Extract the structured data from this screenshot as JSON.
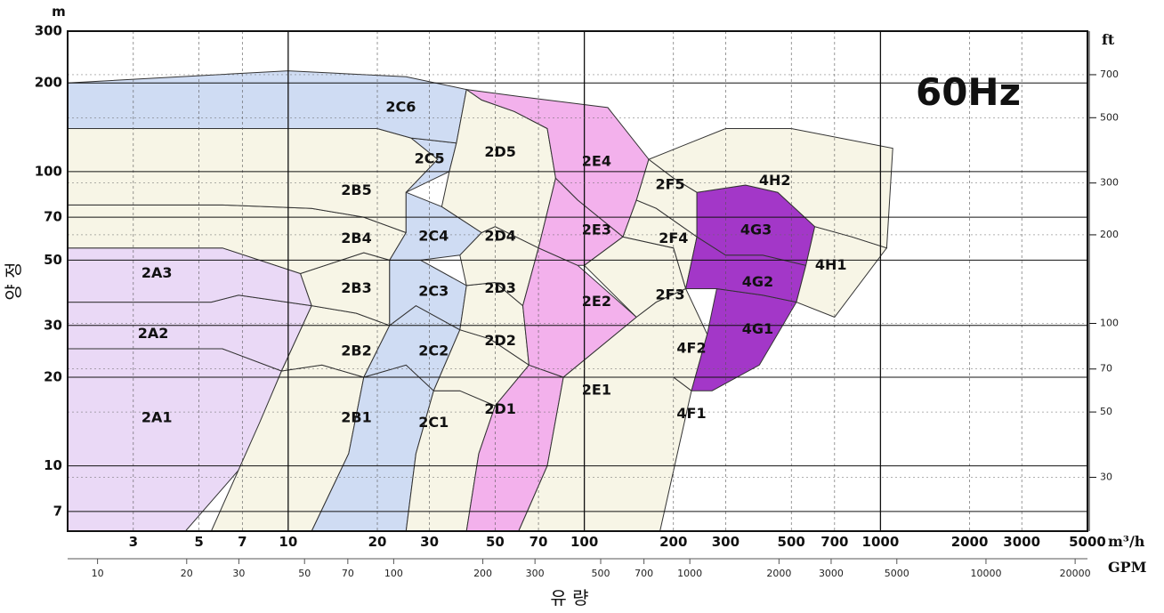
{
  "chart_data": {
    "type": "area",
    "title": "60Hz",
    "xlabel": "유 량",
    "ylabel": "양 정",
    "x_scale": "log",
    "y_scale": "log",
    "xlim": [
      1.8,
      5000
    ],
    "ylim": [
      6,
      300
    ],
    "x_unit": "m³/h",
    "x2_unit": "GPM",
    "y_unit": "m",
    "y2_unit": "ft",
    "x_ticks": [
      3,
      5,
      7,
      10,
      20,
      30,
      50,
      70,
      100,
      200,
      300,
      500,
      700,
      1000,
      2000,
      3000,
      5000
    ],
    "x2_ticks": [
      10,
      20,
      30,
      50,
      70,
      100,
      200,
      300,
      500,
      700,
      1000,
      2000,
      3000,
      5000,
      10000,
      20000
    ],
    "y_ticks": [
      7,
      10,
      20,
      30,
      50,
      70,
      100,
      200,
      300
    ],
    "y2_ticks": [
      30,
      50,
      70,
      100,
      200,
      300,
      500,
      700
    ],
    "grid": true,
    "frequency_label": "60Hz",
    "colors": {
      "A": "#ead9f6",
      "B": "#f7f5e6",
      "C": "#cfdcf3",
      "D": "#f7f5e6",
      "E": "#f3b1ec",
      "F": "#f7f5e6",
      "G": "#a337c8",
      "H": "#f7f5e6"
    },
    "zones": [
      {
        "name": "2A1",
        "color": "A",
        "label_at": [
          3.6,
          14.5
        ],
        "polygon": [
          [
            1.8,
            6
          ],
          [
            1.8,
            25
          ],
          [
            6,
            25
          ],
          [
            9.5,
            21
          ],
          [
            7,
            10
          ],
          [
            4.5,
            6
          ]
        ]
      },
      {
        "name": "2A2",
        "color": "A",
        "label_at": [
          3.5,
          28
        ],
        "polygon": [
          [
            1.8,
            25
          ],
          [
            1.8,
            36
          ],
          [
            5.5,
            36
          ],
          [
            6.8,
            38
          ],
          [
            12,
            35
          ],
          [
            9.5,
            21
          ],
          [
            6,
            25
          ]
        ]
      },
      {
        "name": "2A3",
        "color": "A",
        "label_at": [
          3.6,
          45
        ],
        "polygon": [
          [
            1.8,
            36
          ],
          [
            1.8,
            55
          ],
          [
            6,
            55
          ],
          [
            11,
            45
          ],
          [
            12,
            35
          ],
          [
            6.8,
            38
          ],
          [
            5.5,
            36
          ]
        ]
      },
      {
        "name": "2B1",
        "color": "B",
        "label_at": [
          17,
          14.5
        ],
        "polygon": [
          [
            5.5,
            6
          ],
          [
            8,
            14
          ],
          [
            9.5,
            21
          ],
          [
            13,
            22
          ],
          [
            18,
            20
          ],
          [
            16,
            11
          ],
          [
            12,
            6
          ]
        ]
      },
      {
        "name": "2B2",
        "color": "B",
        "label_at": [
          17,
          24.5
        ],
        "polygon": [
          [
            9.5,
            21
          ],
          [
            12,
            35
          ],
          [
            17,
            33
          ],
          [
            22,
            30
          ],
          [
            18,
            20
          ],
          [
            13,
            22
          ]
        ]
      },
      {
        "name": "2B3",
        "color": "B",
        "label_at": [
          17,
          40
        ],
        "polygon": [
          [
            11,
            45
          ],
          [
            12,
            35
          ],
          [
            17,
            33
          ],
          [
            22,
            30
          ],
          [
            22,
            50
          ],
          [
            18,
            53
          ]
        ]
      },
      {
        "name": "2B4",
        "color": "B",
        "label_at": [
          17,
          59
        ],
        "polygon": [
          [
            1.8,
            55
          ],
          [
            1.8,
            77
          ],
          [
            6,
            77
          ],
          [
            12,
            75
          ],
          [
            18,
            70
          ],
          [
            25,
            62
          ],
          [
            22,
            50
          ],
          [
            18,
            53
          ],
          [
            11,
            45
          ],
          [
            6,
            55
          ]
        ]
      },
      {
        "name": "2B5",
        "color": "B",
        "label_at": [
          17,
          86
        ],
        "polygon": [
          [
            1.8,
            77
          ],
          [
            1.8,
            140
          ],
          [
            20,
            140
          ],
          [
            26,
            130
          ],
          [
            32,
            110
          ],
          [
            25,
            85
          ],
          [
            25,
            62
          ],
          [
            18,
            70
          ],
          [
            12,
            75
          ],
          [
            6,
            77
          ]
        ]
      },
      {
        "name": "2C1",
        "color": "C",
        "label_at": [
          31,
          14
        ],
        "polygon": [
          [
            12,
            6
          ],
          [
            16,
            11
          ],
          [
            18,
            20
          ],
          [
            25,
            22
          ],
          [
            31,
            18
          ],
          [
            27,
            11
          ],
          [
            25,
            6
          ]
        ]
      },
      {
        "name": "2C2",
        "color": "C",
        "label_at": [
          31,
          24.5
        ],
        "polygon": [
          [
            18,
            20
          ],
          [
            22,
            30
          ],
          [
            27,
            35
          ],
          [
            38,
            29
          ],
          [
            31,
            18
          ],
          [
            25,
            22
          ]
        ]
      },
      {
        "name": "2C3",
        "color": "C",
        "label_at": [
          31,
          39
        ],
        "polygon": [
          [
            22,
            30
          ],
          [
            22,
            50
          ],
          [
            28,
            50
          ],
          [
            40,
            41
          ],
          [
            38,
            29
          ],
          [
            27,
            35
          ]
        ]
      },
      {
        "name": "2C4",
        "color": "C",
        "label_at": [
          31,
          60
        ],
        "polygon": [
          [
            22,
            50
          ],
          [
            25,
            62
          ],
          [
            25,
            85
          ],
          [
            33,
            76
          ],
          [
            45,
            62
          ],
          [
            38,
            52
          ],
          [
            28,
            50
          ]
        ]
      },
      {
        "name": "2C5",
        "color": "C",
        "label_at": [
          30,
          110
        ],
        "polygon": [
          [
            32,
            110
          ],
          [
            26,
            130
          ],
          [
            30,
            128
          ],
          [
            37,
            125
          ],
          [
            35,
            100
          ],
          [
            25,
            85
          ]
        ]
      },
      {
        "name": "2C6",
        "color": "C",
        "label_at": [
          24,
          165
        ],
        "polygon": [
          [
            1.8,
            140
          ],
          [
            1.8,
            200
          ],
          [
            10,
            220
          ],
          [
            25,
            210
          ],
          [
            40,
            190
          ],
          [
            37,
            125
          ],
          [
            30,
            128
          ],
          [
            26,
            130
          ],
          [
            20,
            140
          ]
        ]
      },
      {
        "name": "2D1",
        "color": "D",
        "label_at": [
          52,
          15.5
        ],
        "polygon": [
          [
            25,
            6
          ],
          [
            27,
            11
          ],
          [
            31,
            18
          ],
          [
            38,
            18
          ],
          [
            50,
            16
          ],
          [
            44,
            11
          ],
          [
            40,
            6
          ]
        ]
      },
      {
        "name": "2D2",
        "color": "D",
        "label_at": [
          52,
          26.5
        ],
        "polygon": [
          [
            31,
            18
          ],
          [
            38,
            29
          ],
          [
            48,
            27
          ],
          [
            65,
            22
          ],
          [
            50,
            16
          ],
          [
            38,
            18
          ]
        ]
      },
      {
        "name": "2D3",
        "color": "D",
        "label_at": [
          52,
          40
        ],
        "polygon": [
          [
            38,
            29
          ],
          [
            40,
            41
          ],
          [
            50,
            42
          ],
          [
            62,
            35
          ],
          [
            65,
            22
          ],
          [
            48,
            27
          ]
        ]
      },
      {
        "name": "2D4",
        "color": "D",
        "label_at": [
          52,
          60
        ],
        "polygon": [
          [
            38,
            52
          ],
          [
            45,
            62
          ],
          [
            50,
            65
          ],
          [
            70,
            55
          ],
          [
            62,
            35
          ],
          [
            50,
            42
          ],
          [
            40,
            41
          ]
        ]
      },
      {
        "name": "2D5",
        "color": "D",
        "label_at": [
          52,
          116
        ],
        "polygon": [
          [
            37,
            125
          ],
          [
            40,
            190
          ],
          [
            45,
            175
          ],
          [
            58,
            160
          ],
          [
            75,
            140
          ],
          [
            80,
            95
          ],
          [
            70,
            55
          ],
          [
            50,
            65
          ],
          [
            45,
            62
          ],
          [
            33,
            76
          ],
          [
            35,
            100
          ]
        ]
      },
      {
        "name": "2E1",
        "color": "E",
        "label_at": [
          110,
          18
        ],
        "polygon": [
          [
            40,
            6
          ],
          [
            44,
            11
          ],
          [
            50,
            16
          ],
          [
            65,
            22
          ],
          [
            85,
            20
          ],
          [
            75,
            10
          ],
          [
            60,
            6
          ]
        ]
      },
      {
        "name": "2E2",
        "color": "E",
        "label_at": [
          110,
          36
        ],
        "polygon": [
          [
            65,
            22
          ],
          [
            62,
            35
          ],
          [
            70,
            55
          ],
          [
            95,
            48
          ],
          [
            150,
            32
          ],
          [
            85,
            20
          ]
        ]
      },
      {
        "name": "2E3",
        "color": "E",
        "label_at": [
          110,
          63
        ],
        "polygon": [
          [
            70,
            55
          ],
          [
            80,
            95
          ],
          [
            95,
            80
          ],
          [
            135,
            60
          ],
          [
            100,
            48
          ],
          [
            95,
            48
          ]
        ]
      },
      {
        "name": "2E4",
        "color": "E",
        "label_at": [
          110,
          108
        ],
        "polygon": [
          [
            40,
            190
          ],
          [
            45,
            175
          ],
          [
            58,
            160
          ],
          [
            75,
            140
          ],
          [
            80,
            95
          ],
          [
            95,
            80
          ],
          [
            135,
            60
          ],
          [
            150,
            80
          ],
          [
            165,
            110
          ],
          [
            120,
            165
          ],
          [
            60,
            180
          ]
        ]
      },
      {
        "name": "2F3",
        "color": "F",
        "label_at": [
          195,
          38
        ],
        "polygon": [
          [
            100,
            48
          ],
          [
            150,
            32
          ],
          [
            175,
            36
          ],
          [
            220,
            40
          ],
          [
            200,
            55
          ],
          [
            135,
            60
          ]
        ]
      },
      {
        "name": "2F4",
        "color": "F",
        "label_at": [
          200,
          59
        ],
        "polygon": [
          [
            135,
            60
          ],
          [
            150,
            80
          ],
          [
            175,
            75
          ],
          [
            240,
            60
          ],
          [
            220,
            40
          ],
          [
            200,
            55
          ]
        ]
      },
      {
        "name": "2F5",
        "color": "F",
        "label_at": [
          195,
          90
        ],
        "polygon": [
          [
            150,
            80
          ],
          [
            165,
            110
          ],
          [
            200,
            95
          ],
          [
            240,
            85
          ],
          [
            240,
            60
          ],
          [
            175,
            75
          ]
        ]
      },
      {
        "name": "4F1",
        "color": "F",
        "label_at": [
          230,
          15
        ],
        "polygon": [
          [
            60,
            6
          ],
          [
            75,
            10
          ],
          [
            85,
            20
          ],
          [
            150,
            20
          ],
          [
            200,
            20
          ],
          [
            230,
            18
          ],
          [
            180,
            6
          ]
        ]
      },
      {
        "name": "4F2",
        "color": "F",
        "label_at": [
          230,
          25
        ],
        "polygon": [
          [
            85,
            20
          ],
          [
            150,
            32
          ],
          [
            175,
            36
          ],
          [
            220,
            40
          ],
          [
            260,
            28
          ],
          [
            230,
            18
          ],
          [
            200,
            20
          ],
          [
            150,
            20
          ]
        ]
      },
      {
        "name": "4G1",
        "color": "G",
        "label_at": [
          385,
          29
        ],
        "polygon": [
          [
            230,
            18
          ],
          [
            260,
            28
          ],
          [
            280,
            40
          ],
          [
            400,
            38
          ],
          [
            520,
            36
          ],
          [
            390,
            22
          ],
          [
            270,
            18
          ]
        ]
      },
      {
        "name": "4G2",
        "color": "G",
        "label_at": [
          385,
          42
        ],
        "polygon": [
          [
            220,
            40
          ],
          [
            280,
            40
          ],
          [
            400,
            38
          ],
          [
            520,
            36
          ],
          [
            560,
            48
          ],
          [
            400,
            52
          ],
          [
            300,
            52
          ],
          [
            240,
            60
          ]
        ]
      },
      {
        "name": "4G3",
        "color": "G",
        "label_at": [
          380,
          63
        ],
        "polygon": [
          [
            240,
            60
          ],
          [
            300,
            52
          ],
          [
            400,
            52
          ],
          [
            560,
            48
          ],
          [
            600,
            65
          ],
          [
            450,
            85
          ],
          [
            350,
            90
          ],
          [
            240,
            85
          ]
        ]
      },
      {
        "name": "4H1",
        "color": "H",
        "label_at": [
          680,
          48
        ],
        "polygon": [
          [
            520,
            36
          ],
          [
            560,
            48
          ],
          [
            600,
            65
          ],
          [
            800,
            60
          ],
          [
            1050,
            55
          ],
          [
            700,
            32
          ]
        ]
      },
      {
        "name": "4H2",
        "color": "H",
        "label_at": [
          440,
          93
        ],
        "polygon": [
          [
            165,
            110
          ],
          [
            200,
            95
          ],
          [
            240,
            85
          ],
          [
            350,
            90
          ],
          [
            450,
            85
          ],
          [
            600,
            65
          ],
          [
            800,
            60
          ],
          [
            1050,
            55
          ],
          [
            1100,
            120
          ],
          [
            500,
            140
          ],
          [
            300,
            140
          ]
        ]
      }
    ]
  }
}
